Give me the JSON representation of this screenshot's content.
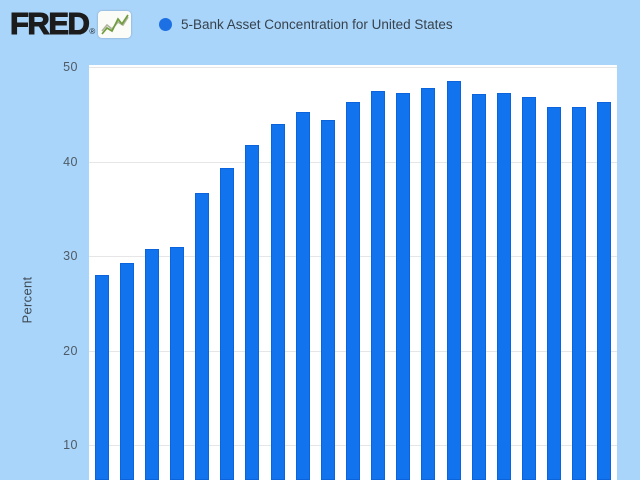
{
  "brand": {
    "logo_text": "FRED",
    "registered_mark": "®"
  },
  "chart_data": {
    "type": "bar",
    "title": "5-Bank Asset Concentration for United States",
    "legend": [
      {
        "label": "5-Bank Asset Concentration for United States",
        "marker_color": "#1c70e4"
      }
    ],
    "series": [
      {
        "name": "5-Bank Asset Concentration for United States",
        "values": [
          28.0,
          29.3,
          30.7,
          31.0,
          36.7,
          39.3,
          41.7,
          44.0,
          45.2,
          44.4,
          46.3,
          47.5,
          47.3,
          47.8,
          48.5,
          47.1,
          47.2,
          46.8,
          45.8,
          45.8,
          46.3
        ]
      }
    ],
    "xlabel": "",
    "ylabel": "Percent",
    "yticks": [
      50,
      40,
      30,
      20,
      10
    ],
    "ylim_visible": [
      6.3,
      50.2
    ],
    "grid": true,
    "legend_position": "top",
    "x_tick_labels_visible": false,
    "bottom_cropped": true
  },
  "colors": {
    "page_background": "#aad5fa",
    "plot_background": "#ffffff",
    "bar": "#1173ee",
    "bar_border": "#0c64dc",
    "gridline": "#e6e6e6",
    "legend_text": "#36424e",
    "axis_tick_text": "#4e5b66",
    "axis_title_text": "#3e4a55",
    "logo_text": "#1c1c1c",
    "logo_icon_green": "#6f9d3d",
    "logo_icon_olive": "#b0b49e"
  }
}
